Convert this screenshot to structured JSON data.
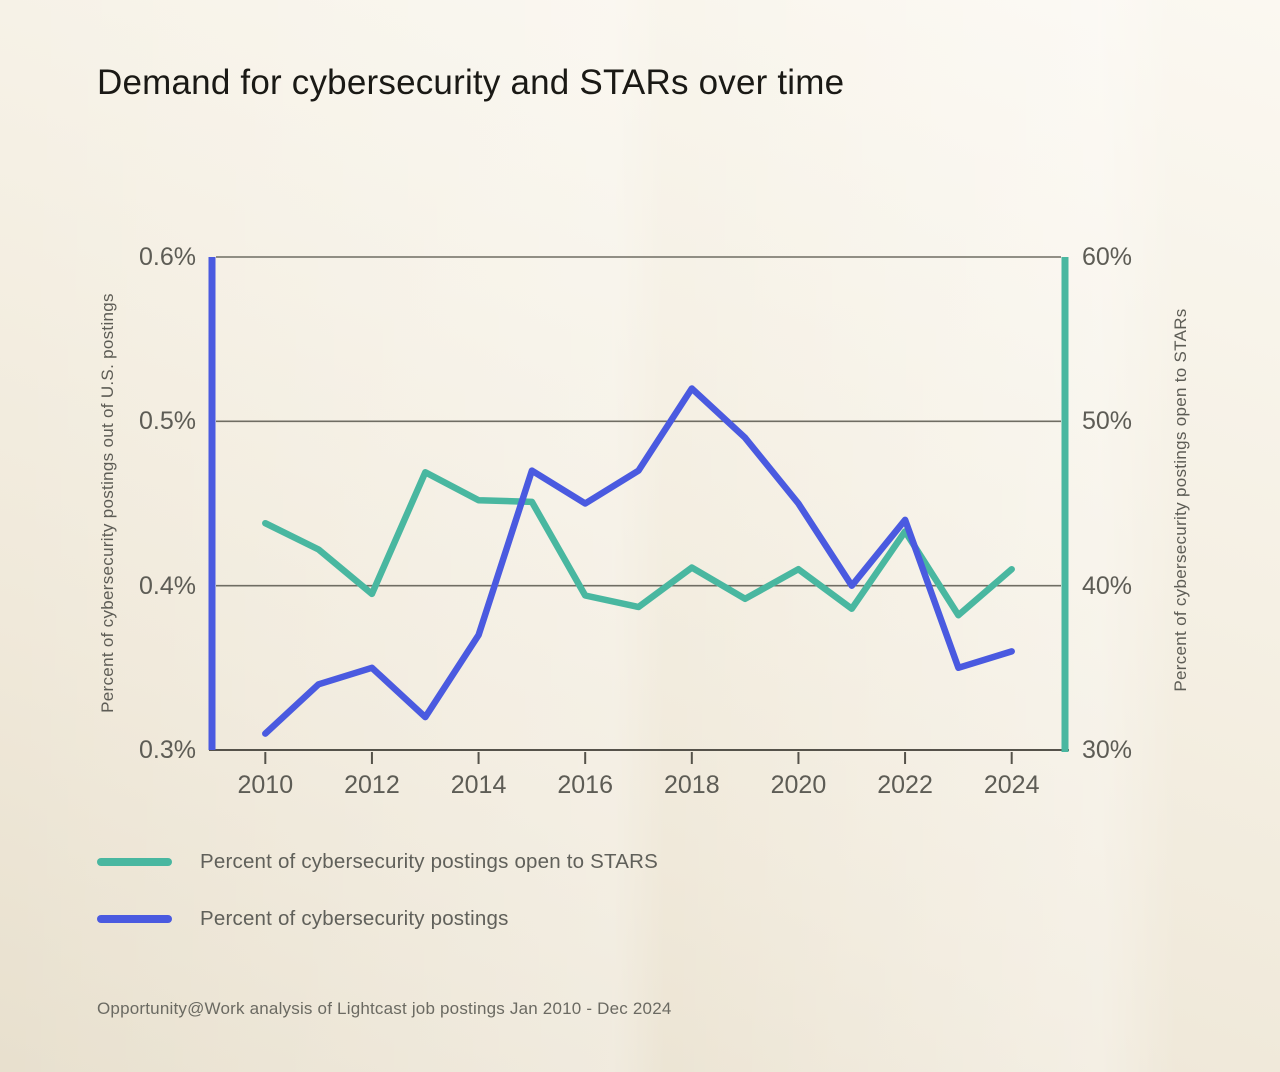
{
  "title": "Demand for cybersecurity and STARs over time",
  "colors": {
    "teal": "#49b7a0",
    "blue": "#4a5ae0",
    "grid": "#6f6d63",
    "axis": "#55524a",
    "text_dark": "#1a1915",
    "text_gray": "#5d5c55",
    "background_cream": "#f1ebdf"
  },
  "chart_data": {
    "type": "line",
    "x": [
      2010,
      2011,
      2012,
      2013,
      2014,
      2015,
      2016,
      2017,
      2018,
      2019,
      2020,
      2021,
      2022,
      2023,
      2024
    ],
    "series": [
      {
        "name": "Percent of cybersecurity postings open to STARS",
        "axis": "right",
        "color": "#49b7a0",
        "values": [
          43.8,
          42.2,
          39.5,
          46.9,
          45.2,
          45.1,
          39.4,
          38.7,
          41.1,
          39.2,
          41.0,
          38.6,
          43.3,
          38.2,
          41.0
        ]
      },
      {
        "name": "Percent of cybersecurity postings",
        "axis": "left",
        "color": "#4a5ae0",
        "values": [
          0.31,
          0.34,
          0.35,
          0.32,
          0.37,
          0.47,
          0.45,
          0.47,
          0.52,
          0.49,
          0.45,
          0.4,
          0.44,
          0.35,
          0.36
        ]
      }
    ],
    "left_axis": {
      "label": "Percent of cybersecurity postings out of U.S. postings",
      "ticks": [
        "0.6%",
        "0.5%",
        "0.4%",
        "0.3%"
      ],
      "tick_values": [
        0.6,
        0.5,
        0.4,
        0.3
      ],
      "range": [
        0.3,
        0.6
      ]
    },
    "right_axis": {
      "label": "Percent of cybersecurity postings open to STARs",
      "ticks": [
        "60%",
        "50%",
        "40%",
        "30%"
      ],
      "tick_values": [
        60,
        50,
        40,
        30
      ],
      "range": [
        30,
        60
      ]
    },
    "x_axis": {
      "ticks": [
        "2010",
        "2012",
        "2014",
        "2016",
        "2018",
        "2020",
        "2022",
        "2024"
      ],
      "tick_values": [
        2010,
        2012,
        2014,
        2016,
        2018,
        2020,
        2022,
        2024
      ],
      "range": [
        2009,
        2025
      ]
    },
    "grid": "horizontal",
    "legend_position": "bottom-left"
  },
  "legend": {
    "items": [
      {
        "label": "Percent of cybersecurity postings open to STARS",
        "color": "#49b7a0"
      },
      {
        "label": "Percent of cybersecurity postings",
        "color": "#4a5ae0"
      }
    ]
  },
  "source": "Opportunity@Work analysis of Lightcast job postings Jan 2010 - Dec 2024"
}
